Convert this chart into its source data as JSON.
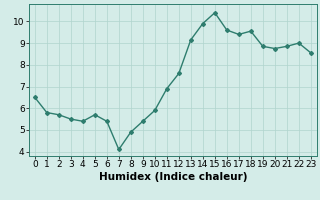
{
  "x": [
    0,
    1,
    2,
    3,
    4,
    5,
    6,
    7,
    8,
    9,
    10,
    11,
    12,
    13,
    14,
    15,
    16,
    17,
    18,
    19,
    20,
    21,
    22,
    23
  ],
  "y": [
    6.5,
    5.8,
    5.7,
    5.5,
    5.4,
    5.7,
    5.4,
    4.1,
    4.9,
    5.4,
    5.9,
    6.9,
    7.6,
    9.15,
    9.9,
    10.4,
    9.6,
    9.4,
    9.55,
    8.85,
    8.75,
    8.85,
    9.0,
    8.55
  ],
  "line_color": "#2e7d6e",
  "marker": "D",
  "marker_size": 2.0,
  "bg_color": "#d4ece8",
  "grid_color": "#b0d4ce",
  "xlabel": "Humidex (Indice chaleur)",
  "ylim": [
    3.8,
    10.8
  ],
  "xlim": [
    -0.5,
    23.5
  ],
  "yticks": [
    4,
    5,
    6,
    7,
    8,
    9,
    10
  ],
  "xticks": [
    0,
    1,
    2,
    3,
    4,
    5,
    6,
    7,
    8,
    9,
    10,
    11,
    12,
    13,
    14,
    15,
    16,
    17,
    18,
    19,
    20,
    21,
    22,
    23
  ],
  "xlabel_fontsize": 7.5,
  "tick_fontsize": 6.5,
  "line_width": 1.0
}
